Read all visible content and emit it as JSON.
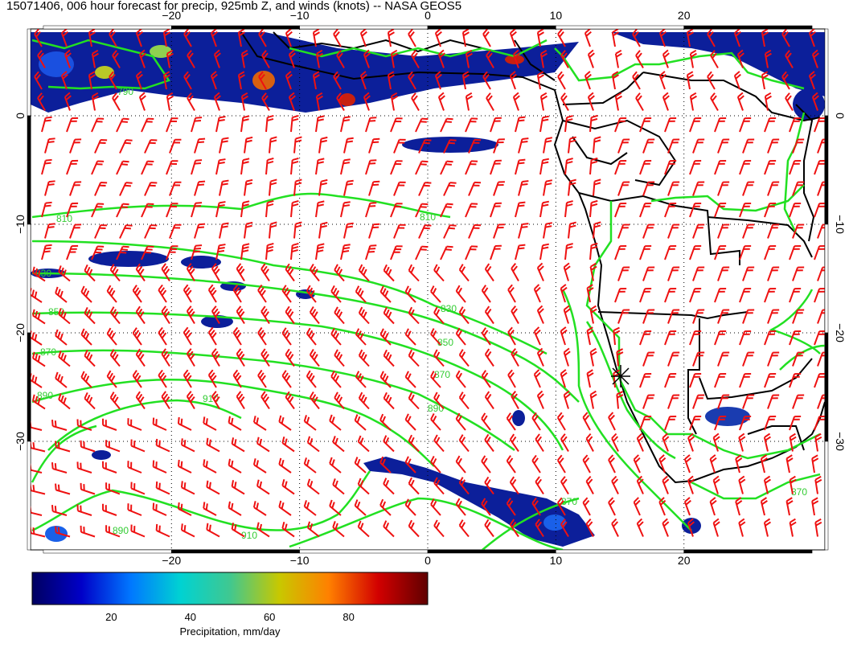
{
  "title": "15071406, 006 hour forecast for precip, 925mb Z, and winds (knots) -- NASA GEOS5",
  "map": {
    "lon_ticks": [
      "−20",
      "−10",
      "0",
      "10",
      "20"
    ],
    "lat_ticks": [
      "0",
      "−10",
      "−20",
      "−30"
    ],
    "lon_values": [
      -20,
      -10,
      0,
      10,
      20
    ],
    "lat_values": [
      0,
      -10,
      -20,
      -30
    ],
    "lon_range": [
      -31,
      31
    ],
    "lat_range": [
      8,
      -40
    ],
    "colors": {
      "contour": "#22e022",
      "barb": "#ee1111",
      "coast": "#000000",
      "precip_low": "#0a1f8a"
    },
    "contour_labels": [
      "790",
      "810",
      "830",
      "850",
      "870",
      "890",
      "910",
      "910",
      "890",
      "870",
      "850",
      "830",
      "810",
      "890",
      "870",
      "870"
    ],
    "marker": "station-star-icon"
  },
  "colorbar": {
    "ticks": [
      "20",
      "40",
      "60",
      "80"
    ],
    "tick_values": [
      20,
      40,
      60,
      80
    ],
    "range": [
      0,
      100
    ],
    "label": "Precipitation, mm/day",
    "stops": [
      "#000060",
      "#0000c8",
      "#0078ff",
      "#00d2d2",
      "#40c890",
      "#c8c800",
      "#ff8000",
      "#d20000",
      "#600000"
    ]
  }
}
